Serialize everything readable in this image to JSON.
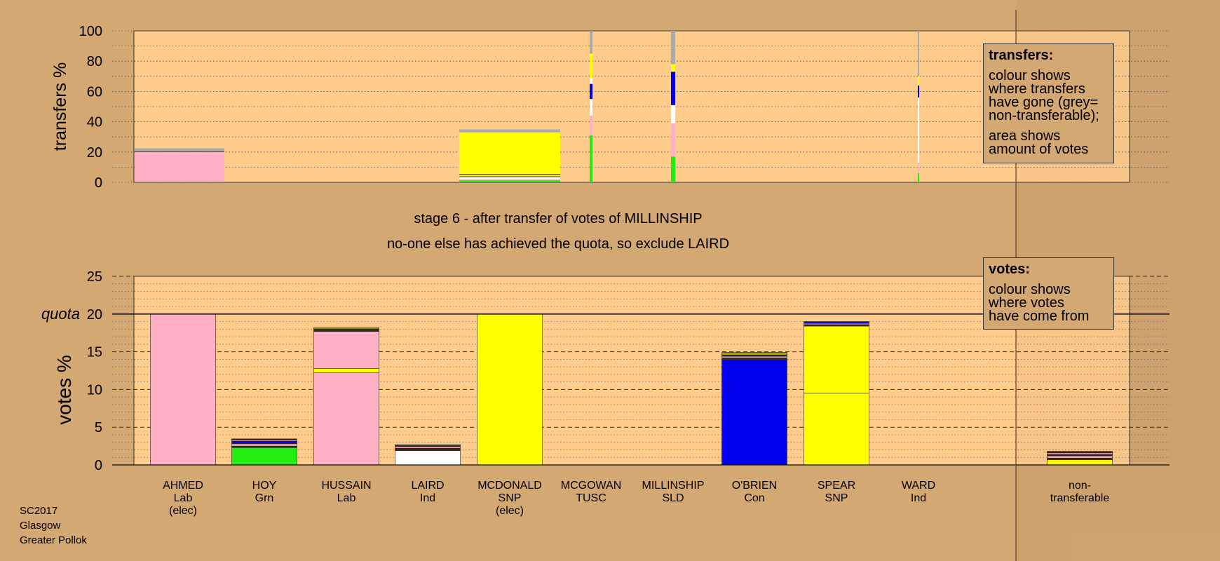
{
  "colors": {
    "background": "#d4a872",
    "plot_area": "#ffcc8c",
    "Lab": "#ffb0c4",
    "Grn": "#22ee11",
    "SNP": "#ffff00",
    "Con": "#0000ee",
    "Ind": "#ffffff",
    "non_transferable": "#aaaaaa",
    "dark": "#3a2a1a"
  },
  "titles": {
    "stage": "stage 6 - after transfer of votes of MILLINSHIP",
    "action": "no-one else has achieved the quota, so exclude LAIRD"
  },
  "legend_transfers": {
    "title": "transfers:",
    "line1": "colour shows",
    "line2": "where transfers",
    "line3": "have gone (grey=",
    "line4": "non-transferable);",
    "line5": "area shows",
    "line6": "amount of votes"
  },
  "legend_votes": {
    "title": "votes:",
    "line1": "colour shows",
    "line2": "where votes",
    "line3": "have come from"
  },
  "footer": {
    "line1": "SC2017",
    "line2": "Glasgow",
    "line3": "Greater Pollok"
  },
  "chart_data": [
    {
      "type": "bar",
      "id": "transfers",
      "ylabel": "transfers %",
      "ylim": [
        0,
        100
      ],
      "yticks": [
        0,
        20,
        40,
        60,
        80,
        100
      ],
      "grid": true,
      "stacked": true,
      "bars": [
        {
          "candidate": "AHMED",
          "segments": [
            {
              "color": "Grn",
              "value": 0.5
            },
            {
              "color": "Lab",
              "value": 19.5
            },
            {
              "color": "dark",
              "value": 0.5
            },
            {
              "color": "non_transferable",
              "value": 2
            }
          ]
        },
        {
          "candidate": "HUSSAIN",
          "segments": [
            {
              "color": "Grn",
              "value": 1.5
            },
            {
              "color": "Lab",
              "value": 0.5
            },
            {
              "color": "Ind",
              "value": 1.5
            },
            {
              "color": "dark",
              "value": 0.5
            },
            {
              "color": "SNP",
              "value": 1
            },
            {
              "color": "dark",
              "value": 0.5
            },
            {
              "color": "SNP",
              "value": 27.5
            },
            {
              "color": "non_transferable",
              "value": 2
            }
          ]
        },
        {
          "candidate": "LAIRD",
          "segments": [
            {
              "color": "Grn",
              "value": 31
            },
            {
              "color": "Lab",
              "value": 13
            },
            {
              "color": "Ind",
              "value": 11
            },
            {
              "color": "Con",
              "value": 10
            },
            {
              "color": "Ind",
              "value": 4
            },
            {
              "color": "SNP",
              "value": 16
            },
            {
              "color": "non_transferable",
              "value": 15
            }
          ]
        },
        {
          "candidate": "MILLINSHIP",
          "segments": [
            {
              "color": "Grn",
              "value": 17
            },
            {
              "color": "Lab",
              "value": 22
            },
            {
              "color": "Ind",
              "value": 12
            },
            {
              "color": "Con",
              "value": 22
            },
            {
              "color": "SNP",
              "value": 5
            },
            {
              "color": "non_transferable",
              "value": 22
            }
          ]
        },
        {
          "candidate": "WARD",
          "segments": [
            {
              "color": "Grn",
              "value": 6
            },
            {
              "color": "Lab",
              "value": 7
            },
            {
              "color": "Ind",
              "value": 43
            },
            {
              "color": "Con",
              "value": 8
            },
            {
              "color": "SNP",
              "value": 6
            },
            {
              "color": "non_transferable",
              "value": 30
            }
          ]
        }
      ]
    },
    {
      "type": "bar",
      "id": "votes",
      "ylabel": "votes %",
      "ylim": [
        0,
        25
      ],
      "yticks": [
        0,
        5,
        10,
        15,
        20,
        25
      ],
      "quota": 20,
      "quota_label": "quota",
      "grid": true,
      "stacked": true,
      "categories": [
        {
          "name": "AHMED",
          "party": "Lab",
          "note": "(elec)"
        },
        {
          "name": "HOY",
          "party": "Grn",
          "note": ""
        },
        {
          "name": "HUSSAIN",
          "party": "Lab",
          "note": ""
        },
        {
          "name": "LAIRD",
          "party": "Ind",
          "note": ""
        },
        {
          "name": "MCDONALD",
          "party": "SNP",
          "note": "(elec)"
        },
        {
          "name": "MCGOWAN",
          "party": "TUSC",
          "note": ""
        },
        {
          "name": "MILLINSHIP",
          "party": "SLD",
          "note": ""
        },
        {
          "name": "O'BRIEN",
          "party": "Con",
          "note": ""
        },
        {
          "name": "SPEAR",
          "party": "SNP",
          "note": ""
        },
        {
          "name": "WARD",
          "party": "Ind",
          "note": ""
        },
        {
          "name": "non-",
          "party": "transferable",
          "note": ""
        }
      ],
      "bars": [
        {
          "candidate": "AHMED",
          "segments": [
            {
              "color": "Lab",
              "value": 20
            }
          ]
        },
        {
          "candidate": "HOY",
          "segments": [
            {
              "color": "Grn",
              "value": 2.3
            },
            {
              "color": "dark",
              "value": 0.2
            },
            {
              "color": "Lab",
              "value": 0.3
            },
            {
              "color": "dark",
              "value": 0.15
            },
            {
              "color": "Con",
              "value": 0.2
            },
            {
              "color": "Lab",
              "value": 0.15
            },
            {
              "color": "dark",
              "value": 0.15
            }
          ]
        },
        {
          "candidate": "HUSSAIN",
          "segments": [
            {
              "color": "Lab",
              "value": 12.2
            },
            {
              "color": "SNP",
              "value": 0.6
            },
            {
              "color": "Lab",
              "value": 4.9
            },
            {
              "color": "dark",
              "value": 0.3
            },
            {
              "color": "SNP",
              "value": 0.1
            },
            {
              "color": "Lab",
              "value": 0.1
            }
          ]
        },
        {
          "candidate": "LAIRD",
          "segments": [
            {
              "color": "Ind",
              "value": 1.9
            },
            {
              "color": "dark",
              "value": 0.3
            },
            {
              "color": "Lab",
              "value": 0.2
            },
            {
              "color": "dark",
              "value": 0.2
            },
            {
              "color": "Ind",
              "value": 0.1
            }
          ]
        },
        {
          "candidate": "MCDONALD",
          "segments": [
            {
              "color": "SNP",
              "value": 20
            }
          ]
        },
        {
          "candidate": "O'BRIEN",
          "segments": [
            {
              "color": "Con",
              "value": 13.9
            },
            {
              "color": "dark",
              "value": 0.3
            },
            {
              "color": "Lab",
              "value": 0.2
            },
            {
              "color": "dark",
              "value": 0.2
            },
            {
              "color": "SNP",
              "value": 0.2
            },
            {
              "color": "dark",
              "value": 0.1
            }
          ]
        },
        {
          "candidate": "SPEAR",
          "segments": [
            {
              "color": "SNP",
              "value": 9.5
            },
            {
              "color": "SNP",
              "value": 8.9
            },
            {
              "color": "dark",
              "value": 0.2
            },
            {
              "color": "Lab",
              "value": 0.15
            },
            {
              "color": "Con",
              "value": 0.15
            },
            {
              "color": "dark",
              "value": 0.1
            }
          ]
        },
        {
          "candidate": "non-transferable",
          "segments": [
            {
              "color": "SNP",
              "value": 0.7
            },
            {
              "color": "dark",
              "value": 0.2
            },
            {
              "color": "Lab",
              "value": 0.3
            },
            {
              "color": "dark",
              "value": 0.2
            },
            {
              "color": "Lab",
              "value": 0.2
            },
            {
              "color": "dark",
              "value": 0.2
            }
          ]
        }
      ]
    }
  ]
}
